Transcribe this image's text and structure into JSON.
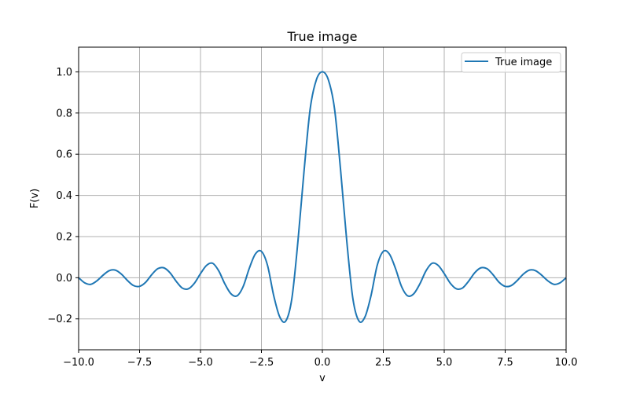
{
  "chart_data": {
    "type": "line",
    "title": "True image",
    "xlabel": "v",
    "ylabel": "F(v)",
    "xlim": [
      -10,
      10
    ],
    "ylim": [
      -0.35,
      1.12
    ],
    "xticks": [
      -10,
      -7.5,
      -5,
      -2.5,
      0,
      2.5,
      5,
      7.5,
      10
    ],
    "xtick_labels": [
      "−10.0",
      "−7.5",
      "−5.0",
      "−2.5",
      "0.0",
      "2.5",
      "5.0",
      "7.5",
      "10.0"
    ],
    "yticks": [
      -0.2,
      0,
      0.2,
      0.4,
      0.6,
      0.8,
      1.0
    ],
    "ytick_labels": [
      "−0.2",
      "0.0",
      "0.2",
      "0.4",
      "0.6",
      "0.8",
      "1.0"
    ],
    "grid": true,
    "legend": "upper right",
    "series": [
      {
        "name": "True image",
        "color": "#1f77b4",
        "x": [
          -10,
          -9.75,
          -9.5,
          -9.25,
          -9,
          -8.75,
          -8.5,
          -8.25,
          -8,
          -7.75,
          -7.5,
          -7.25,
          -7,
          -6.75,
          -6.5,
          -6.25,
          -6,
          -5.75,
          -5.5,
          -5.25,
          -5,
          -4.75,
          -4.5,
          -4.25,
          -4,
          -3.75,
          -3.5,
          -3.25,
          -3,
          -2.75,
          -2.5,
          -2.25,
          -2,
          -1.75,
          -1.5,
          -1.25,
          -1,
          -0.75,
          -0.5,
          -0.25,
          0,
          0.25,
          0.5,
          0.75,
          1,
          1.25,
          1.5,
          1.75,
          2,
          2.25,
          2.5,
          2.75,
          3,
          3.25,
          3.5,
          3.75,
          4,
          4.25,
          4.5,
          4.75,
          5,
          5.25,
          5.5,
          5.75,
          6,
          6.25,
          6.5,
          6.75,
          7,
          7.25,
          7.5,
          7.75,
          8,
          8.25,
          8.5,
          8.75,
          9,
          9.25,
          9.5,
          9.75,
          10
        ],
        "y": [
          0.0,
          -0.025,
          -0.032,
          -0.015,
          0.012,
          0.034,
          0.037,
          0.018,
          -0.013,
          -0.038,
          -0.042,
          -0.022,
          0.015,
          0.044,
          0.048,
          0.024,
          -0.017,
          -0.05,
          -0.054,
          -0.027,
          0.02,
          0.06,
          0.07,
          0.033,
          -0.03,
          -0.078,
          -0.088,
          -0.043,
          0.045,
          0.115,
          0.128,
          0.06,
          -0.085,
          -0.19,
          -0.21,
          -0.1,
          0.18,
          0.52,
          0.82,
          0.96,
          1.0,
          0.96,
          0.82,
          0.52,
          0.18,
          -0.1,
          -0.21,
          -0.19,
          -0.085,
          0.06,
          0.128,
          0.115,
          0.045,
          -0.043,
          -0.088,
          -0.078,
          -0.03,
          0.033,
          0.07,
          0.06,
          0.02,
          -0.027,
          -0.054,
          -0.05,
          -0.017,
          0.024,
          0.048,
          0.044,
          0.015,
          -0.022,
          -0.042,
          -0.038,
          -0.013,
          0.018,
          0.037,
          0.034,
          0.012,
          -0.015,
          -0.032,
          -0.025,
          0.0
        ]
      }
    ]
  }
}
